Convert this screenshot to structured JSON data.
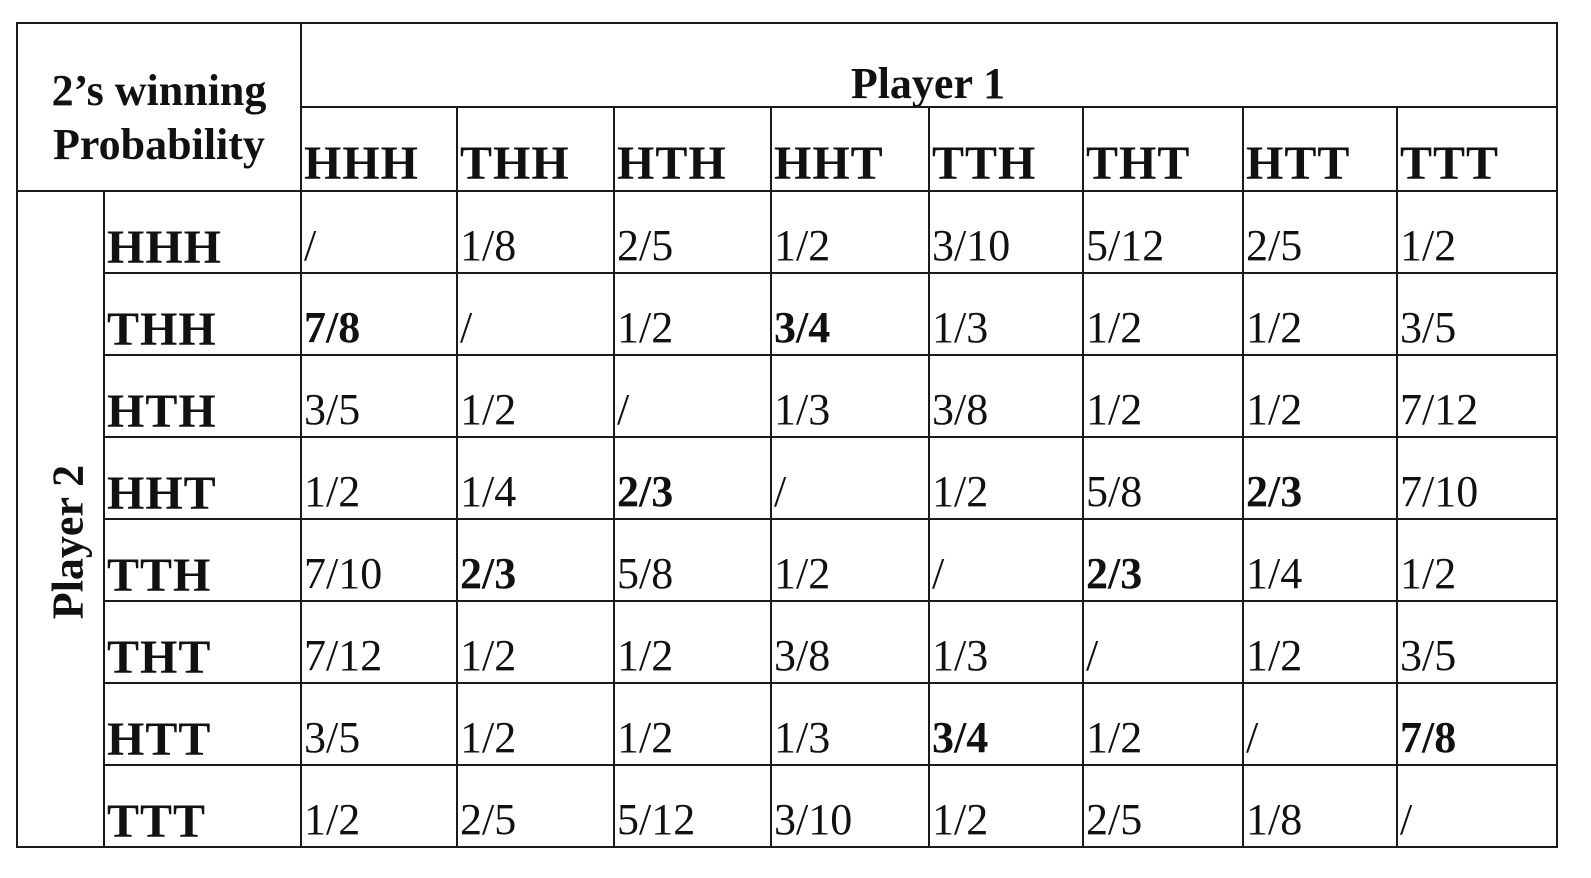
{
  "corner_label": [
    "2’s winning",
    "Probability"
  ],
  "player1_label": "Player 1",
  "player2_label": "Player 2",
  "columns": [
    "HHH",
    "THH",
    "HTH",
    "HHT",
    "TTH",
    "THT",
    "HTT",
    "TTT"
  ],
  "rows": [
    {
      "label": "HHH",
      "cells": [
        {
          "v": "/",
          "b": false
        },
        {
          "v": "1/8",
          "b": false
        },
        {
          "v": "2/5",
          "b": false
        },
        {
          "v": "1/2",
          "b": false
        },
        {
          "v": "3/10",
          "b": false
        },
        {
          "v": "5/12",
          "b": false
        },
        {
          "v": "2/5",
          "b": false
        },
        {
          "v": "1/2",
          "b": false
        }
      ]
    },
    {
      "label": "THH",
      "cells": [
        {
          "v": "7/8",
          "b": true
        },
        {
          "v": "/",
          "b": false
        },
        {
          "v": "1/2",
          "b": false
        },
        {
          "v": "3/4",
          "b": true
        },
        {
          "v": "1/3",
          "b": false
        },
        {
          "v": "1/2",
          "b": false
        },
        {
          "v": "1/2",
          "b": false
        },
        {
          "v": "3/5",
          "b": false
        }
      ]
    },
    {
      "label": "HTH",
      "cells": [
        {
          "v": "3/5",
          "b": false
        },
        {
          "v": "1/2",
          "b": false
        },
        {
          "v": "/",
          "b": false
        },
        {
          "v": "1/3",
          "b": false
        },
        {
          "v": "3/8",
          "b": false
        },
        {
          "v": "1/2",
          "b": false
        },
        {
          "v": "1/2",
          "b": false
        },
        {
          "v": "7/12",
          "b": false
        }
      ]
    },
    {
      "label": "HHT",
      "cells": [
        {
          "v": "1/2",
          "b": false
        },
        {
          "v": "1/4",
          "b": false
        },
        {
          "v": "2/3",
          "b": true
        },
        {
          "v": "/",
          "b": false
        },
        {
          "v": "1/2",
          "b": false
        },
        {
          "v": "5/8",
          "b": false
        },
        {
          "v": "2/3",
          "b": true
        },
        {
          "v": "7/10",
          "b": false
        }
      ]
    },
    {
      "label": "TTH",
      "cells": [
        {
          "v": "7/10",
          "b": false
        },
        {
          "v": "2/3",
          "b": true
        },
        {
          "v": "5/8",
          "b": false
        },
        {
          "v": "1/2",
          "b": false
        },
        {
          "v": "/",
          "b": false
        },
        {
          "v": "2/3",
          "b": true
        },
        {
          "v": "1/4",
          "b": false
        },
        {
          "v": "1/2",
          "b": false
        }
      ]
    },
    {
      "label": "THT",
      "cells": [
        {
          "v": "7/12",
          "b": false
        },
        {
          "v": "1/2",
          "b": false
        },
        {
          "v": "1/2",
          "b": false
        },
        {
          "v": "3/8",
          "b": false
        },
        {
          "v": "1/3",
          "b": false
        },
        {
          "v": "/",
          "b": false
        },
        {
          "v": "1/2",
          "b": false
        },
        {
          "v": "3/5",
          "b": false
        }
      ]
    },
    {
      "label": "HTT",
      "cells": [
        {
          "v": "3/5",
          "b": false
        },
        {
          "v": "1/2",
          "b": false
        },
        {
          "v": "1/2",
          "b": false
        },
        {
          "v": "1/3",
          "b": false
        },
        {
          "v": "3/4",
          "b": true
        },
        {
          "v": "1/2",
          "b": false
        },
        {
          "v": "/",
          "b": false
        },
        {
          "v": "7/8",
          "b": true
        }
      ]
    },
    {
      "label": "TTT",
      "cells": [
        {
          "v": "1/2",
          "b": false
        },
        {
          "v": "2/5",
          "b": false
        },
        {
          "v": "5/12",
          "b": false
        },
        {
          "v": "3/10",
          "b": false
        },
        {
          "v": "1/2",
          "b": false
        },
        {
          "v": "2/5",
          "b": false
        },
        {
          "v": "1/8",
          "b": false
        },
        {
          "v": "/",
          "b": false
        }
      ]
    }
  ]
}
